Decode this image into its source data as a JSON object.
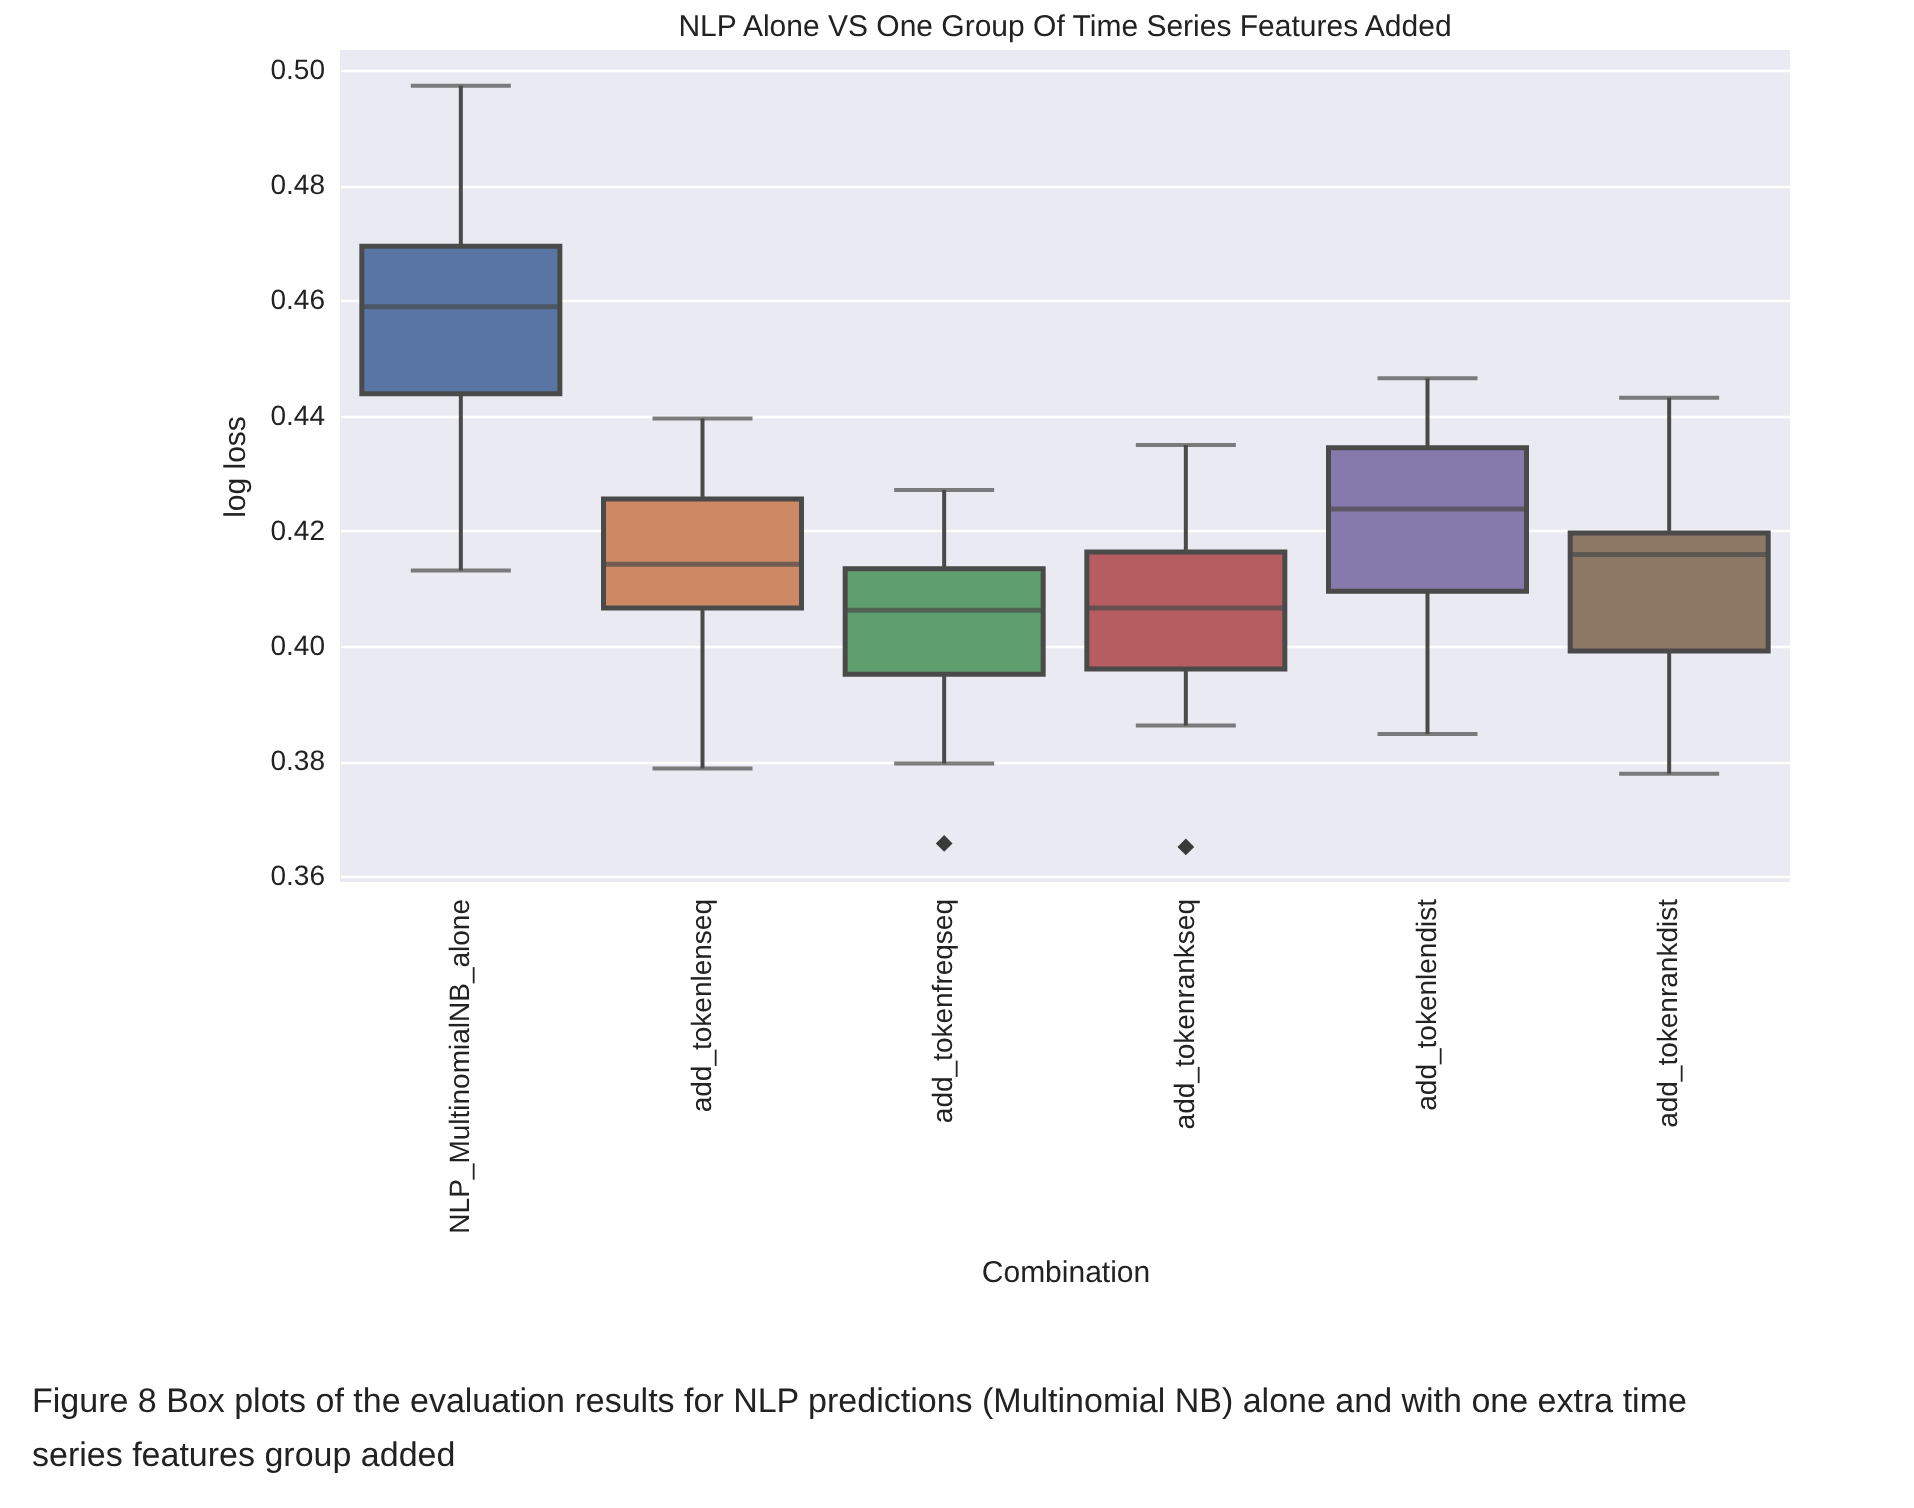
{
  "chart_data": {
    "type": "box",
    "title": "NLP Alone VS One Group Of Time Series Features Added",
    "xlabel": "Combination",
    "ylabel": "log loss",
    "categories": [
      "NLP_MultinomialNB_alone",
      "add_tokenlenseq",
      "add_tokenfreqseq",
      "add_tokenrankseq",
      "add_tokenlendist",
      "add_tokenrankdist"
    ],
    "boxes": [
      {
        "low": 0.4131,
        "q1": 0.4438,
        "median": 0.4589,
        "q3": 0.4694,
        "high": 0.4973
      },
      {
        "low": 0.3787,
        "q1": 0.4066,
        "median": 0.4142,
        "q3": 0.4255,
        "high": 0.4395
      },
      {
        "low": 0.3796,
        "q1": 0.3951,
        "median": 0.4062,
        "q3": 0.4134,
        "high": 0.4271,
        "outliers": [
          0.3657
        ]
      },
      {
        "low": 0.3862,
        "q1": 0.396,
        "median": 0.4066,
        "q3": 0.4163,
        "high": 0.4349,
        "outliers": [
          0.3651
        ]
      },
      {
        "low": 0.3847,
        "q1": 0.4095,
        "median": 0.4238,
        "q3": 0.4344,
        "high": 0.4465
      },
      {
        "low": 0.3778,
        "q1": 0.3991,
        "median": 0.4159,
        "q3": 0.4196,
        "high": 0.4431
      }
    ],
    "colors": [
      "#5975a4",
      "#cc8963",
      "#5f9e6e",
      "#b55d60",
      "#857aab",
      "#8d7866"
    ],
    "ylim": [
      0.359,
      0.5035
    ],
    "yticks": [
      0.36,
      0.38,
      {
        "value": 0.4,
        "label": "0.40"
      },
      0.42,
      0.44,
      0.46,
      0.48,
      {
        "value": 0.5,
        "label": "0.50"
      }
    ],
    "grid": "y",
    "marker": "diamond",
    "annotations": [
      "Figure 8  Box plots of the evaluation results for NLP predictions (Multinomial NB) alone and with one extra time series features group added"
    ]
  }
}
